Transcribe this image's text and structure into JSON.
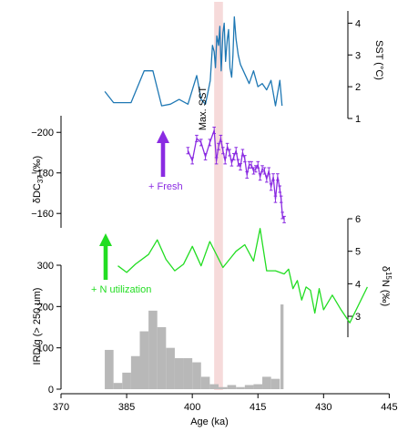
{
  "colors": {
    "sst": "#1f78b4",
    "dc37": "#8a2be2",
    "d15n": "#22dd22",
    "ird": "#b8b8b8",
    "band": "#f6dada"
  },
  "labels": {
    "x_axis": "Age (ka)",
    "sst_axis": "SST (°C)",
    "dc37_axis_pre": "δDC",
    "dc37_axis_sub": "37",
    "dc37_axis_post": " (‰)",
    "d15n_axis_pre": "δ",
    "d15n_axis_sup": "15",
    "d15n_axis_post": "N (‰)",
    "ird_axis": "IRD/g (> 250 μm)",
    "max_sst": "Max. SST",
    "fresh": "+ Fresh",
    "n_util": "+ N utilization"
  },
  "chart_data": [
    {
      "type": "line",
      "name": "sst",
      "x": [
        380.0,
        382.0,
        386.0,
        389.0,
        391.0,
        393.0,
        395.0,
        397.0,
        399.0,
        401.0,
        402.0,
        403.0,
        403.6,
        404.1,
        404.6,
        405.0,
        405.3,
        405.6,
        406.0,
        406.3,
        406.6,
        407.0,
        407.3,
        407.6,
        408.0,
        408.3,
        408.6,
        409.0,
        409.3,
        409.6,
        410.0,
        410.5,
        411.0,
        412.0,
        413.0,
        414.0,
        415.0,
        416.0,
        417.0,
        418.0,
        419.0,
        420.0,
        420.5
      ],
      "y": [
        1.85,
        1.5,
        1.5,
        2.5,
        2.5,
        1.4,
        1.45,
        1.6,
        1.45,
        2.35,
        1.6,
        1.45,
        1.85,
        2.2,
        3.3,
        3.1,
        2.6,
        3.6,
        3.3,
        3.9,
        2.5,
        3.7,
        4.0,
        2.8,
        3.5,
        3.8,
        2.6,
        2.3,
        3.0,
        4.2,
        3.5,
        3.0,
        2.7,
        2.4,
        2.1,
        2.5,
        2.0,
        2.1,
        1.9,
        2.2,
        1.4,
        2.2,
        1.4
      ],
      "ylim": [
        1,
        4.5
      ],
      "yticks": [
        1,
        2,
        3,
        4
      ]
    },
    {
      "type": "line",
      "name": "dc37",
      "x": [
        399.0,
        400.0,
        401.0,
        402.0,
        403.0,
        404.0,
        405.0,
        405.5,
        406.0,
        406.5,
        407.0,
        407.5,
        408.0,
        408.5,
        409.0,
        409.5,
        410.0,
        410.5,
        411.0,
        411.5,
        412.0,
        412.5,
        413.0,
        413.5,
        414.0,
        414.5,
        415.0,
        415.5,
        416.0,
        416.5,
        417.0,
        417.5,
        418.0,
        418.5,
        419.0,
        419.5,
        420.0,
        420.3,
        420.6,
        421.0
      ],
      "y": [
        -191,
        -186,
        -197,
        -195,
        -188,
        -195,
        -201,
        -186,
        -193,
        -197,
        -191,
        -186,
        -193,
        -190,
        -185,
        -188,
        -191,
        -185,
        -183,
        -190,
        -187,
        -179,
        -184,
        -184,
        -181,
        -182,
        -184,
        -178,
        -182,
        -181,
        -177,
        -181,
        -173,
        -178,
        -167,
        -178,
        -172,
        -167,
        -159,
        -157
      ],
      "ylim": [
        -152,
        -210
      ],
      "yticks": [
        -200,
        -180,
        -160
      ]
    },
    {
      "type": "line",
      "name": "d15n",
      "x": [
        383.0,
        385.0,
        387.0,
        390.0,
        392.0,
        394.0,
        396.0,
        398.0,
        400.0,
        402.0,
        404.0,
        407.0,
        410.0,
        412.0,
        414.0,
        415.5,
        417.0,
        419.0,
        421.0,
        422.0,
        423.0,
        424.0,
        425.0,
        426.0,
        427.0,
        428.0,
        429.0,
        430.0,
        432.0,
        434.0,
        436.0,
        440.0
      ],
      "y": [
        4.55,
        4.35,
        4.6,
        4.9,
        5.35,
        4.75,
        4.4,
        4.6,
        5.15,
        4.55,
        5.3,
        4.5,
        5.0,
        5.2,
        4.7,
        5.7,
        4.4,
        4.4,
        4.3,
        4.45,
        3.85,
        4.1,
        3.5,
        3.9,
        3.8,
        3.1,
        3.85,
        3.2,
        3.65,
        3.2,
        2.8,
        3.9
      ],
      "ylim": [
        2.3,
        6
      ],
      "yticks": [
        3,
        4,
        5,
        6
      ]
    },
    {
      "type": "bar",
      "name": "ird",
      "x": [
        381.0,
        383.0,
        385.0,
        387.0,
        389.0,
        391.0,
        393.0,
        395.0,
        397.0,
        399.0,
        401.0,
        403.0,
        405.0,
        407.0,
        409.0,
        411.0,
        413.0,
        415.0,
        417.0,
        419.0,
        420.5
      ],
      "values": [
        95,
        15,
        40,
        80,
        140,
        190,
        150,
        100,
        75,
        75,
        65,
        30,
        12,
        5,
        10,
        5,
        10,
        12,
        30,
        25,
        205
      ],
      "ylim": [
        0,
        300
      ],
      "yticks": [
        0,
        100,
        200,
        300
      ]
    }
  ],
  "x_axis": {
    "xlim": [
      370,
      447
    ],
    "ticks": [
      370,
      385,
      400,
      415,
      430,
      445
    ]
  },
  "highlight": {
    "x0": 405,
    "x1": 407
  }
}
